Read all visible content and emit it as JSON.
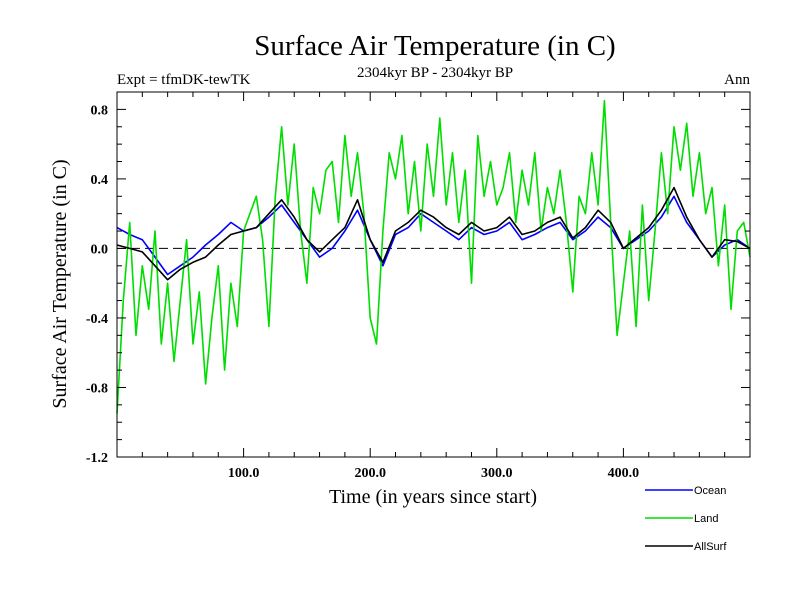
{
  "chart_data": {
    "type": "line",
    "title": "Surface Air Temperature (in C)",
    "subtitle": "2304kyr BP - 2304kyr BP",
    "left_label": "Expt = tfmDK-tewTK",
    "right_label": "Ann",
    "xlabel": "Time (in years since start)",
    "ylabel": "Surface Air Temperature (in C)",
    "xlim": [
      0,
      500
    ],
    "ylim": [
      -1.2,
      0.9
    ],
    "x_ticks": [
      100,
      200,
      300,
      400
    ],
    "x_tick_labels": [
      "100.0",
      "200.0",
      "300.0",
      "400.0"
    ],
    "y_ticks": [
      -1.2,
      -0.8,
      -0.4,
      0.0,
      0.4,
      0.8
    ],
    "y_tick_labels": [
      "-1.2",
      "-0.8",
      "-0.4",
      "0.0",
      "0.4",
      "0.8"
    ],
    "zero_line": true,
    "grid": false,
    "legend_position": "bottom-right",
    "series": [
      {
        "name": "Ocean",
        "color": "#0000ff",
        "x": [
          0,
          10,
          20,
          30,
          40,
          50,
          60,
          70,
          80,
          90,
          100,
          110,
          120,
          130,
          140,
          150,
          160,
          170,
          180,
          190,
          200,
          210,
          220,
          230,
          240,
          250,
          260,
          270,
          280,
          290,
          300,
          310,
          320,
          330,
          340,
          350,
          360,
          370,
          380,
          390,
          400,
          410,
          420,
          430,
          440,
          450,
          460,
          470,
          480,
          490,
          500
        ],
        "values": [
          0.12,
          0.08,
          0.05,
          -0.05,
          -0.15,
          -0.1,
          -0.05,
          0.02,
          0.08,
          0.15,
          0.1,
          0.12,
          0.18,
          0.25,
          0.15,
          0.05,
          -0.05,
          0.0,
          0.1,
          0.22,
          0.05,
          -0.1,
          0.08,
          0.12,
          0.2,
          0.15,
          0.1,
          0.05,
          0.12,
          0.08,
          0.1,
          0.15,
          0.05,
          0.08,
          0.12,
          0.15,
          0.05,
          0.1,
          0.18,
          0.12,
          0.0,
          0.05,
          0.1,
          0.18,
          0.3,
          0.15,
          0.05,
          -0.05,
          0.02,
          0.05,
          0.0
        ]
      },
      {
        "name": "Land",
        "color": "#00dd00",
        "x": [
          0,
          5,
          10,
          15,
          20,
          25,
          30,
          35,
          40,
          45,
          50,
          55,
          60,
          65,
          70,
          75,
          80,
          85,
          90,
          95,
          100,
          105,
          110,
          115,
          120,
          125,
          130,
          135,
          140,
          145,
          150,
          155,
          160,
          165,
          170,
          175,
          180,
          185,
          190,
          195,
          200,
          205,
          210,
          215,
          220,
          225,
          230,
          235,
          240,
          245,
          250,
          255,
          260,
          265,
          270,
          275,
          280,
          285,
          290,
          295,
          300,
          305,
          310,
          315,
          320,
          325,
          330,
          335,
          340,
          345,
          350,
          355,
          360,
          365,
          370,
          375,
          380,
          385,
          390,
          395,
          400,
          405,
          410,
          415,
          420,
          425,
          430,
          435,
          440,
          445,
          450,
          455,
          460,
          465,
          470,
          475,
          480,
          485,
          490,
          495,
          500
        ],
        "values": [
          -0.95,
          -0.3,
          0.15,
          -0.5,
          -0.1,
          -0.35,
          0.1,
          -0.55,
          -0.2,
          -0.65,
          -0.3,
          0.05,
          -0.55,
          -0.25,
          -0.78,
          -0.4,
          -0.1,
          -0.7,
          -0.2,
          -0.45,
          0.1,
          0.2,
          0.3,
          0.05,
          -0.45,
          0.3,
          0.7,
          0.25,
          0.6,
          0.1,
          -0.2,
          0.35,
          0.2,
          0.45,
          0.5,
          0.15,
          0.65,
          0.3,
          0.55,
          0.2,
          -0.4,
          -0.55,
          0.1,
          0.55,
          0.4,
          0.65,
          0.2,
          0.5,
          0.1,
          0.6,
          0.3,
          0.75,
          0.25,
          0.55,
          0.15,
          0.45,
          -0.2,
          0.65,
          0.3,
          0.5,
          0.25,
          0.35,
          0.55,
          0.15,
          0.45,
          0.25,
          0.55,
          0.1,
          0.35,
          0.2,
          0.45,
          0.15,
          -0.25,
          0.3,
          0.2,
          0.55,
          0.25,
          0.85,
          0.15,
          -0.5,
          -0.2,
          0.1,
          -0.45,
          0.25,
          -0.3,
          0.1,
          0.55,
          0.2,
          0.7,
          0.45,
          0.72,
          0.3,
          0.55,
          0.2,
          0.35,
          -0.1,
          0.25,
          -0.35,
          0.1,
          0.15,
          -0.05
        ]
      },
      {
        "name": "AllSurf",
        "color": "#000000",
        "x": [
          0,
          10,
          20,
          30,
          40,
          50,
          60,
          70,
          80,
          90,
          100,
          110,
          120,
          130,
          140,
          150,
          160,
          170,
          180,
          190,
          200,
          210,
          220,
          230,
          240,
          250,
          260,
          270,
          280,
          290,
          300,
          310,
          320,
          330,
          340,
          350,
          360,
          370,
          380,
          390,
          400,
          410,
          420,
          430,
          440,
          450,
          460,
          470,
          480,
          490,
          500
        ],
        "values": [
          0.02,
          0.0,
          -0.02,
          -0.1,
          -0.18,
          -0.12,
          -0.08,
          -0.05,
          0.02,
          0.08,
          0.1,
          0.12,
          0.2,
          0.28,
          0.18,
          0.05,
          -0.02,
          0.05,
          0.12,
          0.28,
          0.05,
          -0.08,
          0.1,
          0.15,
          0.22,
          0.18,
          0.12,
          0.08,
          0.15,
          0.1,
          0.12,
          0.18,
          0.08,
          0.1,
          0.15,
          0.18,
          0.06,
          0.12,
          0.22,
          0.15,
          0.0,
          0.06,
          0.12,
          0.22,
          0.35,
          0.18,
          0.05,
          -0.05,
          0.05,
          0.04,
          0.0
        ]
      }
    ]
  }
}
